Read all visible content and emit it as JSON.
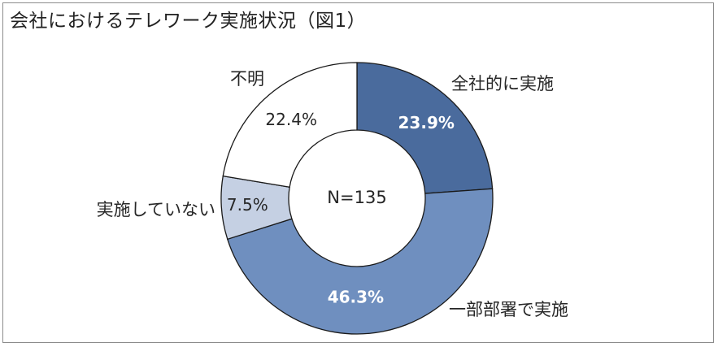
{
  "title": "会社におけるテレワーク実施状況（図1）",
  "center_label": "N=135",
  "chart_data": {
    "type": "pie",
    "variant": "donut",
    "title": "会社におけるテレワーク実施状況（図1）",
    "n": 135,
    "start_angle_deg": 0,
    "direction": "clockwise",
    "slices": [
      {
        "label": "全社的に実施",
        "value": 23.9,
        "value_text": "23.9%",
        "color": "#4a6b9d",
        "text_color": "#ffffff",
        "bold": true
      },
      {
        "label": "一部部署で実施",
        "value": 46.3,
        "value_text": "46.3%",
        "color": "#6f8fbf",
        "text_color": "#ffffff",
        "bold": true
      },
      {
        "label": "実施していない",
        "value": 7.5,
        "value_text": "7.5%",
        "color": "#c5d0e3",
        "text_color": "#262626",
        "bold": false
      },
      {
        "label": "不明",
        "value": 22.4,
        "value_text": "22.4%",
        "color": "#ffffff",
        "text_color": "#262626",
        "bold": false
      }
    ],
    "stroke_color": "#1a1a1a"
  }
}
